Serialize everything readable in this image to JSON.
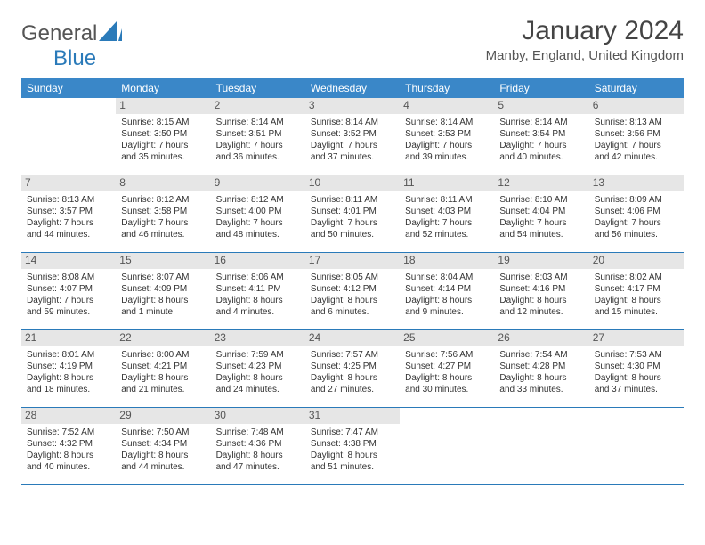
{
  "logo": {
    "word1": "General",
    "word2": "Blue"
  },
  "title": "January 2024",
  "location": "Manby, England, United Kingdom",
  "colors": {
    "header_bg": "#3a87c8",
    "header_text": "#ffffff",
    "week_border": "#2a7ab9",
    "daynum_bg": "#e6e6e6",
    "text": "#333333",
    "logo_gray": "#555555",
    "logo_blue": "#2a7ab9"
  },
  "font": {
    "title_size": 30,
    "location_size": 15,
    "header_size": 12,
    "cell_size": 10
  },
  "day_names": [
    "Sunday",
    "Monday",
    "Tuesday",
    "Wednesday",
    "Thursday",
    "Friday",
    "Saturday"
  ],
  "weeks": [
    [
      null,
      {
        "n": "1",
        "sr": "8:15 AM",
        "ss": "3:50 PM",
        "dl": "Daylight: 7 hours and 35 minutes."
      },
      {
        "n": "2",
        "sr": "8:14 AM",
        "ss": "3:51 PM",
        "dl": "Daylight: 7 hours and 36 minutes."
      },
      {
        "n": "3",
        "sr": "8:14 AM",
        "ss": "3:52 PM",
        "dl": "Daylight: 7 hours and 37 minutes."
      },
      {
        "n": "4",
        "sr": "8:14 AM",
        "ss": "3:53 PM",
        "dl": "Daylight: 7 hours and 39 minutes."
      },
      {
        "n": "5",
        "sr": "8:14 AM",
        "ss": "3:54 PM",
        "dl": "Daylight: 7 hours and 40 minutes."
      },
      {
        "n": "6",
        "sr": "8:13 AM",
        "ss": "3:56 PM",
        "dl": "Daylight: 7 hours and 42 minutes."
      }
    ],
    [
      {
        "n": "7",
        "sr": "8:13 AM",
        "ss": "3:57 PM",
        "dl": "Daylight: 7 hours and 44 minutes."
      },
      {
        "n": "8",
        "sr": "8:12 AM",
        "ss": "3:58 PM",
        "dl": "Daylight: 7 hours and 46 minutes."
      },
      {
        "n": "9",
        "sr": "8:12 AM",
        "ss": "4:00 PM",
        "dl": "Daylight: 7 hours and 48 minutes."
      },
      {
        "n": "10",
        "sr": "8:11 AM",
        "ss": "4:01 PM",
        "dl": "Daylight: 7 hours and 50 minutes."
      },
      {
        "n": "11",
        "sr": "8:11 AM",
        "ss": "4:03 PM",
        "dl": "Daylight: 7 hours and 52 minutes."
      },
      {
        "n": "12",
        "sr": "8:10 AM",
        "ss": "4:04 PM",
        "dl": "Daylight: 7 hours and 54 minutes."
      },
      {
        "n": "13",
        "sr": "8:09 AM",
        "ss": "4:06 PM",
        "dl": "Daylight: 7 hours and 56 minutes."
      }
    ],
    [
      {
        "n": "14",
        "sr": "8:08 AM",
        "ss": "4:07 PM",
        "dl": "Daylight: 7 hours and 59 minutes."
      },
      {
        "n": "15",
        "sr": "8:07 AM",
        "ss": "4:09 PM",
        "dl": "Daylight: 8 hours and 1 minute."
      },
      {
        "n": "16",
        "sr": "8:06 AM",
        "ss": "4:11 PM",
        "dl": "Daylight: 8 hours and 4 minutes."
      },
      {
        "n": "17",
        "sr": "8:05 AM",
        "ss": "4:12 PM",
        "dl": "Daylight: 8 hours and 6 minutes."
      },
      {
        "n": "18",
        "sr": "8:04 AM",
        "ss": "4:14 PM",
        "dl": "Daylight: 8 hours and 9 minutes."
      },
      {
        "n": "19",
        "sr": "8:03 AM",
        "ss": "4:16 PM",
        "dl": "Daylight: 8 hours and 12 minutes."
      },
      {
        "n": "20",
        "sr": "8:02 AM",
        "ss": "4:17 PM",
        "dl": "Daylight: 8 hours and 15 minutes."
      }
    ],
    [
      {
        "n": "21",
        "sr": "8:01 AM",
        "ss": "4:19 PM",
        "dl": "Daylight: 8 hours and 18 minutes."
      },
      {
        "n": "22",
        "sr": "8:00 AM",
        "ss": "4:21 PM",
        "dl": "Daylight: 8 hours and 21 minutes."
      },
      {
        "n": "23",
        "sr": "7:59 AM",
        "ss": "4:23 PM",
        "dl": "Daylight: 8 hours and 24 minutes."
      },
      {
        "n": "24",
        "sr": "7:57 AM",
        "ss": "4:25 PM",
        "dl": "Daylight: 8 hours and 27 minutes."
      },
      {
        "n": "25",
        "sr": "7:56 AM",
        "ss": "4:27 PM",
        "dl": "Daylight: 8 hours and 30 minutes."
      },
      {
        "n": "26",
        "sr": "7:54 AM",
        "ss": "4:28 PM",
        "dl": "Daylight: 8 hours and 33 minutes."
      },
      {
        "n": "27",
        "sr": "7:53 AM",
        "ss": "4:30 PM",
        "dl": "Daylight: 8 hours and 37 minutes."
      }
    ],
    [
      {
        "n": "28",
        "sr": "7:52 AM",
        "ss": "4:32 PM",
        "dl": "Daylight: 8 hours and 40 minutes."
      },
      {
        "n": "29",
        "sr": "7:50 AM",
        "ss": "4:34 PM",
        "dl": "Daylight: 8 hours and 44 minutes."
      },
      {
        "n": "30",
        "sr": "7:48 AM",
        "ss": "4:36 PM",
        "dl": "Daylight: 8 hours and 47 minutes."
      },
      {
        "n": "31",
        "sr": "7:47 AM",
        "ss": "4:38 PM",
        "dl": "Daylight: 8 hours and 51 minutes."
      },
      null,
      null,
      null
    ]
  ]
}
